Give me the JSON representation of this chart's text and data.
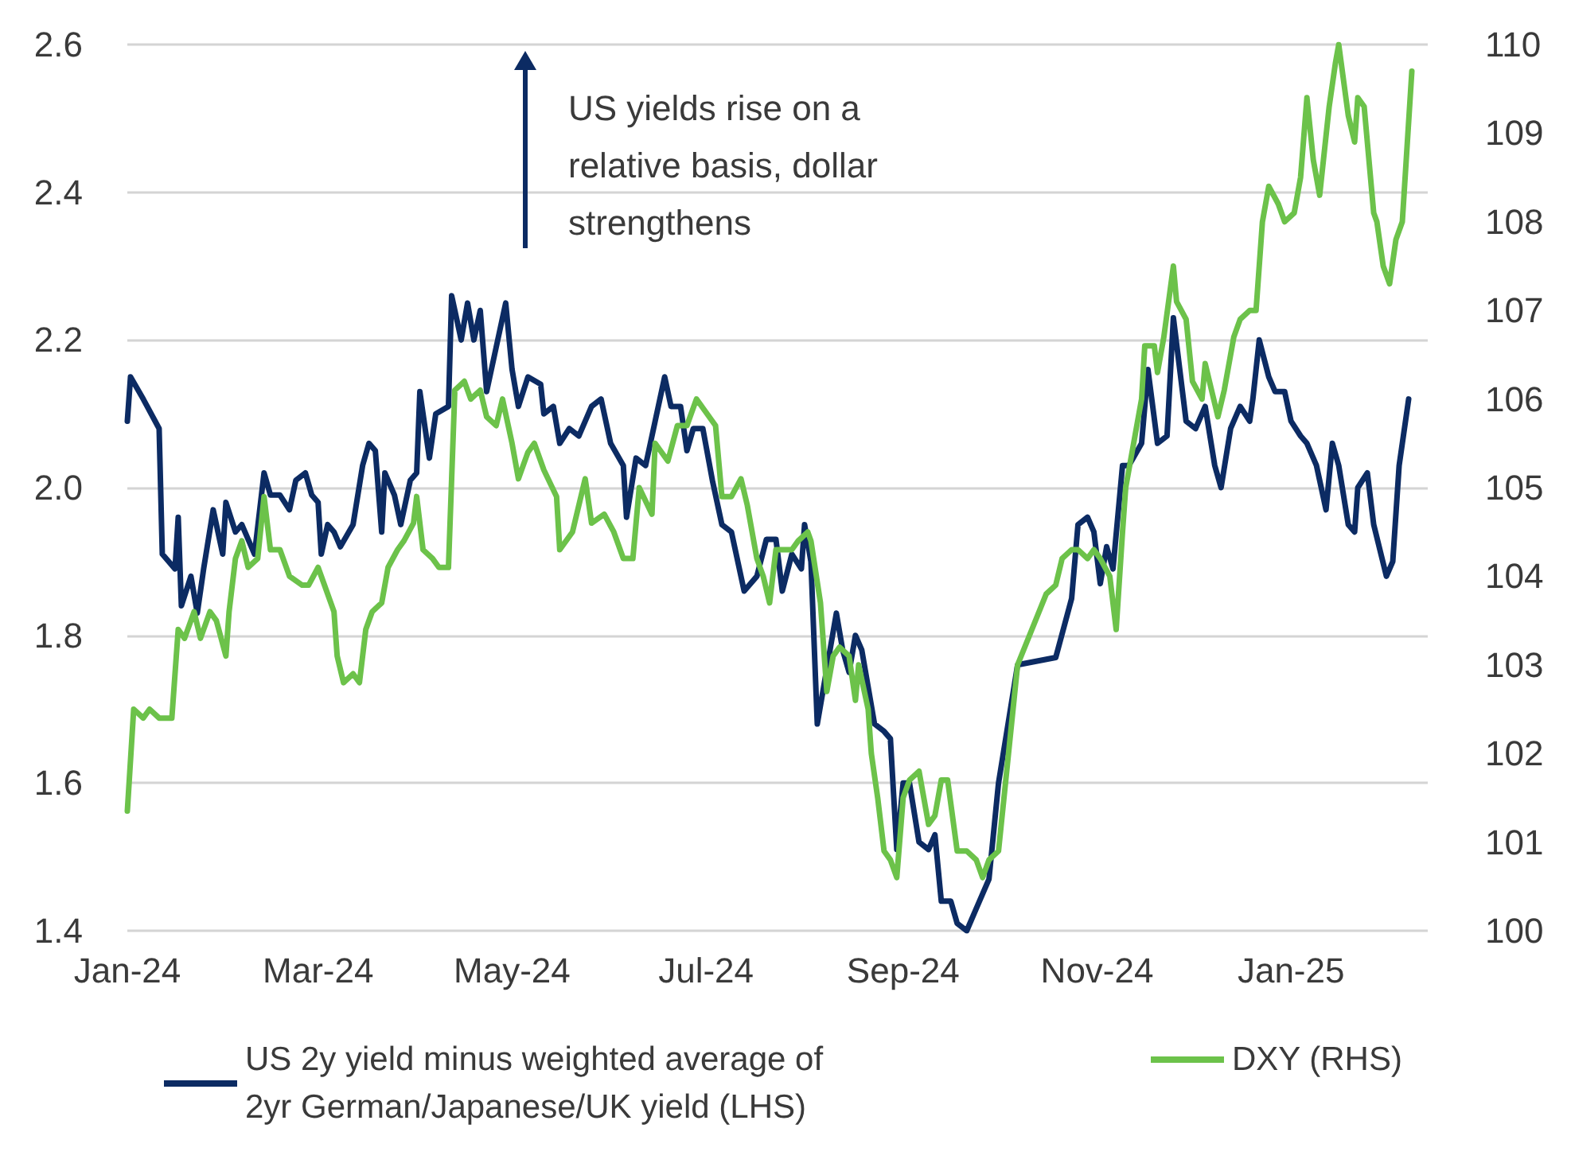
{
  "chart_data": {
    "type": "line",
    "annotations": [
      "US yields rise on a relative basis, dollar strengthens"
    ],
    "xlim": [
      "2024-01-01",
      "2025-02-13"
    ],
    "xticks": [
      {
        "value": "2024-01-01",
        "label": "Jan-24"
      },
      {
        "value": "2024-03-01",
        "label": "Mar-24"
      },
      {
        "value": "2024-05-01",
        "label": "May-24"
      },
      {
        "value": "2024-07-01",
        "label": "Jul-24"
      },
      {
        "value": "2024-09-01",
        "label": "Sep-24"
      },
      {
        "value": "2024-11-01",
        "label": "Nov-24"
      },
      {
        "value": "2025-01-01",
        "label": "Jan-25"
      }
    ],
    "ylim": [
      1.4,
      2.6
    ],
    "yticks": [
      1.4,
      1.6,
      1.8,
      {
        "value": 2,
        "label": "2.0"
      },
      2.2,
      2.4,
      2.6
    ],
    "y2lim": [
      100,
      110
    ],
    "y2ticks": [
      100,
      101,
      102,
      103,
      104,
      105,
      106,
      107,
      108,
      109,
      110
    ],
    "grid": "y",
    "legend": "bottom",
    "series": [
      {
        "name": "US 2y yield minus weighted average of 2yr German/Japanese/UK yield (LHS)",
        "color": "#0c2b63",
        "x": [
          "2024-01-01",
          "2024-01-02",
          "2024-01-06",
          "2024-01-11",
          "2024-01-12",
          "2024-01-16",
          "2024-01-17",
          "2024-01-18",
          "2024-01-21",
          "2024-01-23",
          "2024-01-25",
          "2024-01-28",
          "2024-01-31",
          "2024-02-01",
          "2024-02-04",
          "2024-02-06",
          "2024-02-10",
          "2024-02-13",
          "2024-02-15",
          "2024-02-18",
          "2024-02-21",
          "2024-02-23",
          "2024-02-26",
          "2024-02-28",
          "2024-03-01",
          "2024-03-02",
          "2024-03-04",
          "2024-03-06",
          "2024-03-08",
          "2024-03-12",
          "2024-03-15",
          "2024-03-17",
          "2024-03-19",
          "2024-03-21",
          "2024-03-22",
          "2024-03-25",
          "2024-03-27",
          "2024-03-30",
          "2024-04-01",
          "2024-04-02",
          "2024-04-05",
          "2024-04-07",
          "2024-04-11",
          "2024-04-12",
          "2024-04-15",
          "2024-04-17",
          "2024-04-19",
          "2024-04-21",
          "2024-04-23",
          "2024-04-26",
          "2024-04-29",
          "2024-05-01",
          "2024-05-03",
          "2024-05-06",
          "2024-05-10",
          "2024-05-11",
          "2024-05-14",
          "2024-05-16",
          "2024-05-19",
          "2024-05-22",
          "2024-05-26",
          "2024-05-29",
          "2024-06-01",
          "2024-06-05",
          "2024-06-06",
          "2024-06-09",
          "2024-06-12",
          "2024-06-15",
          "2024-06-18",
          "2024-06-20",
          "2024-06-23",
          "2024-06-25",
          "2024-06-27",
          "2024-06-30",
          "2024-07-03",
          "2024-07-06",
          "2024-07-09",
          "2024-07-13",
          "2024-07-17",
          "2024-07-20",
          "2024-07-23",
          "2024-07-25",
          "2024-07-28",
          "2024-07-31",
          "2024-08-01",
          "2024-08-03",
          "2024-08-05",
          "2024-08-07",
          "2024-08-09",
          "2024-08-11",
          "2024-08-13",
          "2024-08-15",
          "2024-08-17",
          "2024-08-19",
          "2024-08-21",
          "2024-08-23",
          "2024-08-26",
          "2024-08-28",
          "2024-08-30",
          "2024-09-01",
          "2024-09-03",
          "2024-09-06",
          "2024-09-09",
          "2024-09-11",
          "2024-09-13",
          "2024-09-16",
          "2024-09-18",
          "2024-09-21",
          "2024-09-24",
          "2024-09-26",
          "2024-09-28",
          "2024-10-01",
          "2024-10-07",
          "2024-10-19",
          "2024-10-24",
          "2024-10-26",
          "2024-10-29",
          "2024-10-31",
          "2024-11-02",
          "2024-11-04",
          "2024-11-06",
          "2024-11-09",
          "2024-11-11",
          "2024-11-15",
          "2024-11-17",
          "2024-11-20",
          "2024-11-23",
          "2024-11-25",
          "2024-11-29",
          "2024-12-02",
          "2024-12-05",
          "2024-12-08",
          "2024-12-10",
          "2024-12-13",
          "2024-12-16",
          "2024-12-19",
          "2024-12-20",
          "2024-12-22",
          "2024-12-25",
          "2024-12-27",
          "2024-12-30",
          "2025-01-01",
          "2025-01-04",
          "2025-01-06",
          "2025-01-09",
          "2025-01-12",
          "2025-01-14",
          "2025-01-16",
          "2025-01-19",
          "2025-01-21",
          "2025-01-22",
          "2025-01-25",
          "2025-01-27",
          "2025-01-31",
          "2025-02-02",
          "2025-02-04",
          "2025-02-07"
        ],
        "values": [
          2.09,
          2.15,
          2.12,
          2.08,
          1.91,
          1.89,
          1.96,
          1.84,
          1.88,
          1.83,
          1.89,
          1.97,
          1.91,
          1.98,
          1.94,
          1.95,
          1.91,
          2.02,
          1.99,
          1.99,
          1.97,
          2.01,
          2.02,
          1.99,
          1.98,
          1.91,
          1.95,
          1.94,
          1.92,
          1.95,
          2.03,
          2.06,
          2.05,
          1.94,
          2.02,
          1.99,
          1.95,
          2.01,
          2.02,
          2.13,
          2.04,
          2.1,
          2.11,
          2.26,
          2.2,
          2.25,
          2.2,
          2.24,
          2.13,
          2.19,
          2.25,
          2.16,
          2.11,
          2.15,
          2.14,
          2.1,
          2.11,
          2.06,
          2.08,
          2.07,
          2.11,
          2.12,
          2.06,
          2.03,
          1.96,
          2.04,
          2.03,
          2.09,
          2.15,
          2.11,
          2.11,
          2.05,
          2.08,
          2.08,
          2.01,
          1.95,
          1.94,
          1.86,
          1.88,
          1.93,
          1.93,
          1.86,
          1.91,
          1.89,
          1.95,
          1.9,
          1.68,
          1.73,
          1.78,
          1.83,
          1.78,
          1.75,
          1.8,
          1.78,
          1.73,
          1.68,
          1.67,
          1.66,
          1.51,
          1.6,
          1.6,
          1.52,
          1.51,
          1.53,
          1.44,
          1.44,
          1.41,
          1.4,
          1.43,
          1.45,
          1.47,
          1.6,
          1.76,
          1.77,
          1.85,
          1.95,
          1.96,
          1.94,
          1.87,
          1.92,
          1.89,
          2.03,
          2.03,
          2.06,
          2.16,
          2.06,
          2.07,
          2.23,
          2.09,
          2.08,
          2.11,
          2.03,
          2.0,
          2.08,
          2.11,
          2.09,
          2.12,
          2.2,
          2.15,
          2.13,
          2.13,
          2.09,
          2.07,
          2.06,
          2.03,
          1.97,
          2.06,
          2.03,
          1.95,
          1.94,
          2.0,
          2.02,
          1.95,
          1.88,
          1.9,
          2.03,
          2.12
        ]
      },
      {
        "name": "DXY (RHS)",
        "color": "#6cc24a",
        "axis": "y2",
        "x": [
          "2024-01-01",
          "2024-01-03",
          "2024-01-06",
          "2024-01-08",
          "2024-01-11",
          "2024-01-15",
          "2024-01-17",
          "2024-01-19",
          "2024-01-22",
          "2024-01-24",
          "2024-01-27",
          "2024-01-29",
          "2024-02-01",
          "2024-02-02",
          "2024-02-04",
          "2024-02-06",
          "2024-02-08",
          "2024-02-11",
          "2024-02-13",
          "2024-02-15",
          "2024-02-18",
          "2024-02-21",
          "2024-02-25",
          "2024-02-27",
          "2024-03-01",
          "2024-03-03",
          "2024-03-06",
          "2024-03-07",
          "2024-03-09",
          "2024-03-12",
          "2024-03-14",
          "2024-03-16",
          "2024-03-18",
          "2024-03-21",
          "2024-03-23",
          "2024-03-26",
          "2024-03-28",
          "2024-03-31",
          "2024-04-01",
          "2024-04-03",
          "2024-04-06",
          "2024-04-08",
          "2024-04-11",
          "2024-04-12",
          "2024-04-13",
          "2024-04-16",
          "2024-04-18",
          "2024-04-21",
          "2024-04-23",
          "2024-04-26",
          "2024-04-28",
          "2024-05-01",
          "2024-05-03",
          "2024-05-06",
          "2024-05-08",
          "2024-05-11",
          "2024-05-15",
          "2024-05-16",
          "2024-05-20",
          "2024-05-24",
          "2024-05-26",
          "2024-05-30",
          "2024-06-02",
          "2024-06-05",
          "2024-06-08",
          "2024-06-10",
          "2024-06-14",
          "2024-06-15",
          "2024-06-19",
          "2024-06-22",
          "2024-06-25",
          "2024-06-28",
          "2024-06-30",
          "2024-07-04",
          "2024-07-06",
          "2024-07-09",
          "2024-07-12",
          "2024-07-14",
          "2024-07-17",
          "2024-07-19",
          "2024-07-21",
          "2024-07-23",
          "2024-07-26",
          "2024-07-28",
          "2024-07-30",
          "2024-08-02",
          "2024-08-03",
          "2024-08-06",
          "2024-08-08",
          "2024-08-10",
          "2024-08-12",
          "2024-08-15",
          "2024-08-17",
          "2024-08-18",
          "2024-08-21",
          "2024-08-22",
          "2024-08-24",
          "2024-08-26",
          "2024-08-28",
          "2024-08-30",
          "2024-09-01",
          "2024-09-03",
          "2024-09-06",
          "2024-09-09",
          "2024-09-11",
          "2024-09-13",
          "2024-09-15",
          "2024-09-18",
          "2024-09-21",
          "2024-09-24",
          "2024-09-26",
          "2024-09-28",
          "2024-10-01",
          "2024-10-07",
          "2024-10-16",
          "2024-10-19",
          "2024-10-21",
          "2024-10-24",
          "2024-10-26",
          "2024-10-29",
          "2024-10-31",
          "2024-11-02",
          "2024-11-05",
          "2024-11-07",
          "2024-11-09",
          "2024-11-10",
          "2024-11-13",
          "2024-11-15",
          "2024-11-16",
          "2024-11-19",
          "2024-11-20",
          "2024-11-22",
          "2024-11-25",
          "2024-11-26",
          "2024-11-29",
          "2024-12-01",
          "2024-12-04",
          "2024-12-05",
          "2024-12-07",
          "2024-12-09",
          "2024-12-11",
          "2024-12-14",
          "2024-12-16",
          "2024-12-19",
          "2024-12-21",
          "2024-12-23",
          "2024-12-25",
          "2024-12-28",
          "2024-12-30",
          "2025-01-02",
          "2025-01-04",
          "2025-01-06",
          "2025-01-08",
          "2025-01-10",
          "2025-01-13",
          "2025-01-15",
          "2025-01-16",
          "2025-01-19",
          "2025-01-21",
          "2025-01-22",
          "2025-01-24",
          "2025-01-27",
          "2025-01-28",
          "2025-01-30",
          "2025-02-01",
          "2025-02-03",
          "2025-02-05",
          "2025-02-08"
        ],
        "values": [
          101.35,
          102.5,
          102.4,
          102.5,
          102.4,
          102.4,
          103.4,
          103.3,
          103.6,
          103.3,
          103.6,
          103.5,
          103.1,
          103.6,
          104.2,
          104.4,
          104.1,
          104.2,
          104.9,
          104.3,
          104.3,
          104.0,
          103.9,
          103.9,
          104.1,
          103.9,
          103.6,
          103.1,
          102.8,
          102.9,
          102.8,
          103.4,
          103.6,
          103.7,
          104.1,
          104.3,
          104.4,
          104.6,
          104.9,
          104.3,
          104.2,
          104.1,
          104.1,
          105.1,
          106.1,
          106.2,
          106.0,
          106.1,
          105.8,
          105.7,
          106.0,
          105.5,
          105.1,
          105.4,
          105.5,
          105.2,
          104.9,
          104.3,
          104.5,
          105.1,
          104.6,
          104.7,
          104.5,
          104.2,
          104.2,
          105.0,
          104.7,
          105.5,
          105.3,
          105.7,
          105.7,
          106.0,
          105.9,
          105.7,
          104.9,
          104.9,
          105.1,
          104.8,
          104.2,
          104.0,
          103.7,
          104.3,
          104.3,
          104.3,
          104.4,
          104.5,
          104.4,
          103.7,
          102.7,
          103.1,
          103.2,
          103.1,
          102.6,
          103.0,
          102.5,
          102.0,
          101.5,
          100.9,
          100.8,
          100.6,
          101.5,
          101.7,
          101.8,
          101.2,
          101.3,
          101.7,
          101.7,
          100.9,
          100.9,
          100.8,
          100.6,
          100.8,
          100.9,
          103.0,
          103.8,
          103.9,
          104.2,
          104.3,
          104.3,
          104.2,
          104.3,
          104.2,
          104.0,
          103.4,
          104.5,
          105.0,
          105.6,
          106.0,
          106.6,
          106.6,
          106.3,
          106.7,
          107.5,
          107.1,
          106.9,
          106.2,
          106.0,
          106.4,
          106.1,
          105.8,
          106.1,
          106.7,
          106.9,
          107.0,
          107.0,
          108.0,
          108.4,
          108.2,
          108.0,
          108.1,
          108.5,
          109.4,
          108.7,
          108.3,
          109.3,
          109.8,
          110.0,
          109.2,
          108.9,
          109.4,
          109.3,
          108.1,
          108.0,
          107.5,
          107.3,
          107.8,
          108.0,
          109.7
        ]
      }
    ]
  }
}
